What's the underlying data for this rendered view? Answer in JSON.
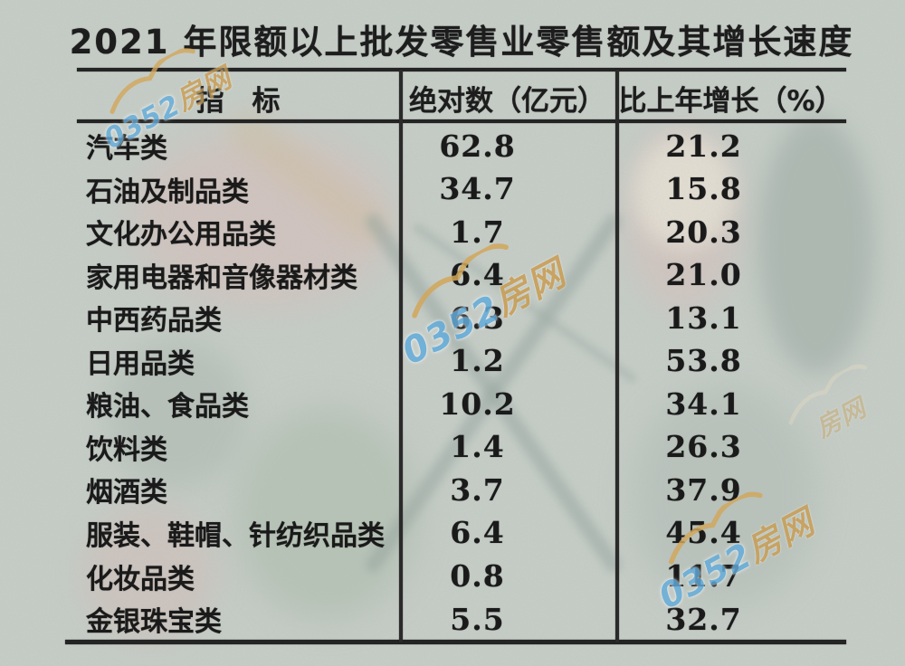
{
  "page": {
    "title": "2021 年限额以上批发零售业零售额及其增长速度"
  },
  "table": {
    "col_headers": [
      "指　标",
      "绝对数（亿元）",
      "比上年增长（%）"
    ],
    "rows": [
      {
        "label": "汽车类",
        "absolute": "62.8",
        "growth": "21.2"
      },
      {
        "label": "石油及制品类",
        "absolute": "34.7",
        "growth": "15.8"
      },
      {
        "label": "文化办公用品类",
        "absolute": "1.7",
        "growth": "20.3"
      },
      {
        "label": "家用电器和音像器材类",
        "absolute": "6.4",
        "growth": "21.0"
      },
      {
        "label": "中西药品类",
        "absolute": "6.3",
        "growth": "13.1"
      },
      {
        "label": "日用品类",
        "absolute": "1.2",
        "growth": "53.8"
      },
      {
        "label": "粮油、食品类",
        "absolute": "10.2",
        "growth": "34.1"
      },
      {
        "label": "饮料类",
        "absolute": "1.4",
        "growth": "26.3"
      },
      {
        "label": "烟酒类",
        "absolute": "3.7",
        "growth": "37.9"
      },
      {
        "label": "服装、鞋帽、针纺织品类",
        "absolute": "6.4",
        "growth": "45.4"
      },
      {
        "label": "化妆品类",
        "absolute": "0.8",
        "growth": "11.7"
      },
      {
        "label": "金银珠宝类",
        "absolute": "5.5",
        "growth": "32.7"
      }
    ]
  },
  "chart_data": {
    "type": "table",
    "title": "2021 年限额以上批发零售业零售额及其增长速度",
    "categories": [
      "汽车类",
      "石油及制品类",
      "文化办公用品类",
      "家用电器和音像器材类",
      "中西药品类",
      "日用品类",
      "粮油、食品类",
      "饮料类",
      "烟酒类",
      "服装、鞋帽、针纺织品类",
      "化妆品类",
      "金银珠宝类"
    ],
    "series": [
      {
        "name": "绝对数（亿元）",
        "values": [
          62.8,
          34.7,
          1.7,
          6.4,
          6.3,
          1.2,
          10.2,
          1.4,
          3.7,
          6.4,
          0.8,
          5.5
        ]
      },
      {
        "name": "比上年增长（%）",
        "values": [
          21.2,
          15.8,
          20.3,
          21.0,
          13.1,
          53.8,
          34.1,
          26.3,
          37.9,
          45.4,
          11.7,
          32.7
        ]
      }
    ]
  },
  "watermark": {
    "prefix": "0352",
    "suffix": "房网",
    "icon": "car-swoosh-icon",
    "blue": "#63acdb",
    "gold": "#c99d52"
  },
  "colors": {
    "paper": "#c6cdc7",
    "ink": "#1d1d1d"
  }
}
